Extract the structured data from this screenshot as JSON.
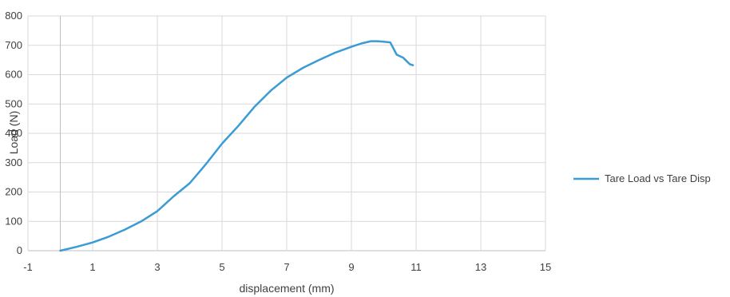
{
  "chart_data": {
    "type": "scatter",
    "title": "",
    "xlabel": "displacement (mm)",
    "ylabel": "Load (N)",
    "xlim": [
      -1,
      15
    ],
    "ylim": [
      0,
      800
    ],
    "x_ticks": [
      "-1",
      "1",
      "3",
      "5",
      "7",
      "9",
      "11",
      "13",
      "15"
    ],
    "y_ticks": [
      "0",
      "100",
      "200",
      "300",
      "400",
      "500",
      "600",
      "700",
      "800"
    ],
    "grid": true,
    "legend_position": "right",
    "series": [
      {
        "name": "Tare Load vs Tare Disp",
        "color": "#3a9bd5",
        "x": [
          0,
          0.5,
          1,
          1.5,
          2,
          2.5,
          3,
          3.5,
          4,
          4.5,
          5,
          5.5,
          6,
          6.5,
          7,
          7.5,
          8,
          8.5,
          9,
          9.3,
          9.6,
          9.8,
          10.0,
          10.2,
          10.4,
          10.6,
          10.8,
          10.9
        ],
        "y": [
          0,
          13,
          28,
          48,
          72,
          100,
          135,
          185,
          230,
          295,
          365,
          425,
          490,
          545,
          590,
          623,
          650,
          675,
          695,
          706,
          714,
          714,
          712,
          710,
          668,
          658,
          636,
          632
        ]
      }
    ]
  }
}
